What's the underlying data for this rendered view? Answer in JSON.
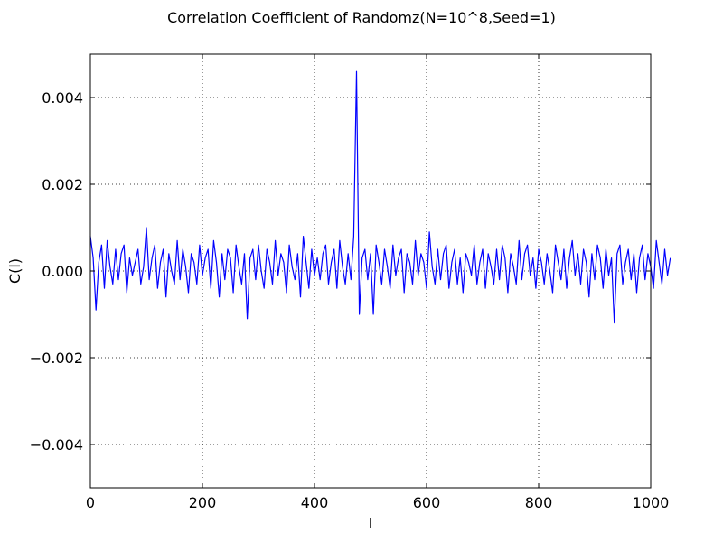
{
  "chart_data": {
    "type": "line",
    "title": "Correlation Coefficient of Randomz(N=10^8,Seed=1)",
    "xlabel": "l",
    "ylabel": "C(l)",
    "xlim": [
      0,
      1000
    ],
    "ylim": [
      -0.005,
      0.005
    ],
    "xticks": [
      0,
      200,
      400,
      600,
      800,
      1000
    ],
    "xtick_labels": [
      "0",
      "200",
      "400",
      "600",
      "800",
      "1000"
    ],
    "yticks": [
      -0.004,
      -0.002,
      0.0,
      0.002,
      0.004
    ],
    "ytick_labels": [
      "−0.004",
      "−0.002",
      "0.000",
      "0.002",
      "0.004"
    ],
    "grid": true,
    "grid_style": "dotted",
    "series": [
      {
        "color": "#0000ff",
        "x_start": 0,
        "x_step": 5,
        "values": [
          0.0008,
          0.0003,
          -0.0009,
          0.0002,
          0.0006,
          -0.0004,
          0.0007,
          0.0001,
          -0.0003,
          0.0005,
          -0.0002,
          0.0004,
          0.0006,
          -0.0005,
          0.0003,
          -0.0001,
          0.0002,
          0.0005,
          -0.0003,
          0.0001,
          0.001,
          -0.0002,
          0.0003,
          0.0006,
          -0.0004,
          0.0002,
          0.0005,
          -0.0006,
          0.0004,
          0.0,
          -0.0003,
          0.0007,
          -0.0002,
          0.0005,
          0.0001,
          -0.0005,
          0.0004,
          0.0002,
          -0.0003,
          0.0006,
          -0.0001,
          0.0003,
          0.0005,
          -0.0004,
          0.0007,
          0.0002,
          -0.0006,
          0.0004,
          -0.0002,
          0.0005,
          0.0003,
          -0.0005,
          0.0006,
          0.0001,
          -0.0003,
          0.0004,
          -0.0011,
          0.0003,
          0.0005,
          -0.0002,
          0.0006,
          0.0,
          -0.0004,
          0.0005,
          0.0002,
          -0.0003,
          0.0007,
          -0.0001,
          0.0004,
          0.0002,
          -0.0005,
          0.0006,
          0.0001,
          -0.0002,
          0.0004,
          -0.0006,
          0.0008,
          0.0002,
          -0.0004,
          0.0005,
          -0.0001,
          0.0003,
          -0.0002,
          0.0004,
          0.0006,
          -0.0003,
          0.0002,
          0.0005,
          -0.0004,
          0.0007,
          0.0001,
          -0.0003,
          0.0004,
          -0.0002,
          0.0008,
          0.0046,
          -0.001,
          0.0003,
          0.0005,
          -0.0002,
          0.0004,
          -0.001,
          0.0006,
          0.0002,
          -0.0003,
          0.0005,
          0.0001,
          -0.0004,
          0.0006,
          -0.0001,
          0.0003,
          0.0005,
          -0.0005,
          0.0004,
          0.0002,
          -0.0003,
          0.0007,
          -0.0001,
          0.0004,
          0.0002,
          -0.0004,
          0.0009,
          0.0001,
          -0.0003,
          0.0005,
          -0.0002,
          0.0004,
          0.0006,
          -0.0004,
          0.0002,
          0.0005,
          -0.0003,
          0.0003,
          -0.0005,
          0.0004,
          0.0002,
          -0.0001,
          0.0006,
          -0.0003,
          0.0002,
          0.0005,
          -0.0004,
          0.0004,
          0.0001,
          -0.0003,
          0.0005,
          -0.0002,
          0.0006,
          0.0003,
          -0.0005,
          0.0004,
          0.0001,
          -0.0003,
          0.0007,
          -0.0002,
          0.0004,
          0.0006,
          -0.0001,
          0.0003,
          -0.0004,
          0.0005,
          0.0002,
          -0.0003,
          0.0004,
          0.0,
          -0.0005,
          0.0006,
          0.0002,
          -0.0002,
          0.0005,
          -0.0004,
          0.0003,
          0.0007,
          -0.0001,
          0.0004,
          -0.0003,
          0.0005,
          0.0002,
          -0.0006,
          0.0004,
          -0.0002,
          0.0006,
          0.0003,
          -0.0004,
          0.0005,
          -0.0001,
          0.0003,
          -0.0012,
          0.0004,
          0.0006,
          -0.0003,
          0.0002,
          0.0005,
          -0.0002,
          0.0004,
          -0.0005,
          0.0003,
          0.0006,
          -0.0002,
          0.0004,
          0.0001,
          -0.0004,
          0.0007,
          0.0002,
          -0.0003,
          0.0005,
          -0.0001,
          0.0003
        ]
      }
    ]
  }
}
